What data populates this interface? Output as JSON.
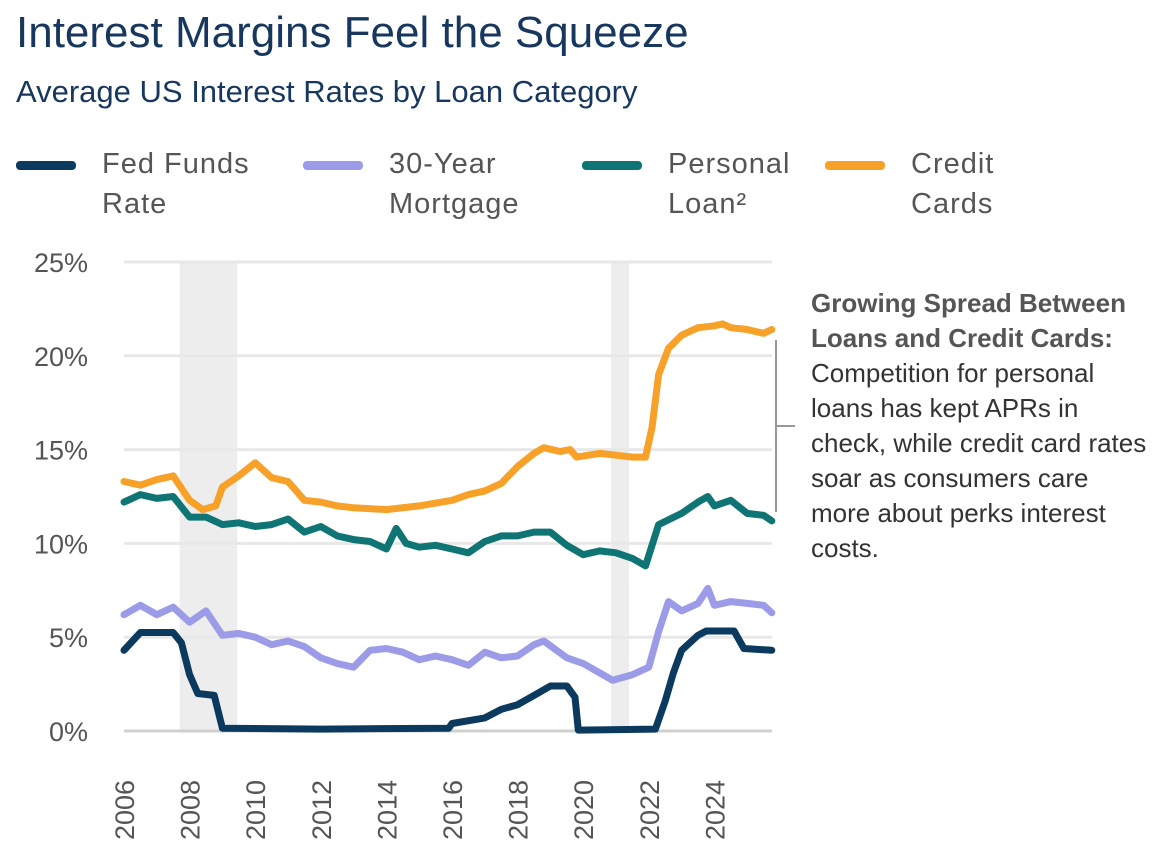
{
  "title": "Interest Margins Feel the Squeeze",
  "subtitle": "Average US Interest Rates by Loan Category",
  "annotation": {
    "heading": "Growing Spread Between Loans and Credit Cards:",
    "body": "Competition for personal loans has kept APRs in check, while credit card rates soar as consumers care more about perks interest costs."
  },
  "chart_data": {
    "type": "line",
    "title": "Interest Margins Feel the Squeeze",
    "subtitle": "Average US Interest Rates by Loan Category",
    "xlabel": "",
    "ylabel": "",
    "xlim": [
      2006,
      2025.75
    ],
    "ylim": [
      0,
      25
    ],
    "x_ticks": [
      "2006",
      "2008",
      "2010",
      "2012",
      "2014",
      "2016",
      "2018",
      "2020",
      "2022",
      "2024"
    ],
    "y_ticks": [
      "0%",
      "5%",
      "10%",
      "15%",
      "20%",
      "25%"
    ],
    "grid": true,
    "legend_position": "top",
    "recession_shading": [
      [
        2007.7,
        2009.45
      ],
      [
        2020.85,
        2021.4
      ]
    ],
    "series": [
      {
        "name": "Fed Funds Rate",
        "color": "#0b3a5e",
        "points": [
          [
            2006,
            4.3
          ],
          [
            2006.5,
            5.25
          ],
          [
            2007.5,
            5.25
          ],
          [
            2007.75,
            4.7
          ],
          [
            2008,
            3.0
          ],
          [
            2008.25,
            2.0
          ],
          [
            2008.75,
            1.9
          ],
          [
            2009,
            0.15
          ],
          [
            2012,
            0.1
          ],
          [
            2015.9,
            0.15
          ],
          [
            2016,
            0.4
          ],
          [
            2017,
            0.7
          ],
          [
            2017.5,
            1.15
          ],
          [
            2018,
            1.4
          ],
          [
            2018.5,
            1.9
          ],
          [
            2019,
            2.4
          ],
          [
            2019.5,
            2.4
          ],
          [
            2019.75,
            1.8
          ],
          [
            2019.85,
            0.05
          ],
          [
            2022.2,
            0.1
          ],
          [
            2022.5,
            1.6
          ],
          [
            2022.75,
            3.1
          ],
          [
            2023,
            4.3
          ],
          [
            2023.5,
            5.1
          ],
          [
            2023.75,
            5.33
          ],
          [
            2024.6,
            5.33
          ],
          [
            2024.9,
            4.4
          ],
          [
            2025.75,
            4.3
          ]
        ]
      },
      {
        "name": "30-Year Mortgage",
        "color": "#9b9be8",
        "points": [
          [
            2006,
            6.2
          ],
          [
            2006.5,
            6.7
          ],
          [
            2007,
            6.2
          ],
          [
            2007.5,
            6.6
          ],
          [
            2008,
            5.8
          ],
          [
            2008.5,
            6.4
          ],
          [
            2009,
            5.1
          ],
          [
            2009.5,
            5.2
          ],
          [
            2010,
            5.0
          ],
          [
            2010.5,
            4.6
          ],
          [
            2011,
            4.8
          ],
          [
            2011.5,
            4.5
          ],
          [
            2012,
            3.9
          ],
          [
            2012.5,
            3.6
          ],
          [
            2013,
            3.4
          ],
          [
            2013.5,
            4.3
          ],
          [
            2014,
            4.4
          ],
          [
            2014.5,
            4.2
          ],
          [
            2015,
            3.8
          ],
          [
            2015.5,
            4.0
          ],
          [
            2016,
            3.8
          ],
          [
            2016.5,
            3.5
          ],
          [
            2017,
            4.2
          ],
          [
            2017.5,
            3.9
          ],
          [
            2018,
            4.0
          ],
          [
            2018.5,
            4.6
          ],
          [
            2018.8,
            4.8
          ],
          [
            2019.5,
            3.9
          ],
          [
            2020,
            3.6
          ],
          [
            2020.5,
            3.1
          ],
          [
            2020.9,
            2.7
          ],
          [
            2021.5,
            3.0
          ],
          [
            2022,
            3.4
          ],
          [
            2022.3,
            5.3
          ],
          [
            2022.6,
            6.9
          ],
          [
            2023,
            6.4
          ],
          [
            2023.5,
            6.8
          ],
          [
            2023.8,
            7.6
          ],
          [
            2024,
            6.7
          ],
          [
            2024.5,
            6.9
          ],
          [
            2025,
            6.8
          ],
          [
            2025.5,
            6.7
          ],
          [
            2025.75,
            6.3
          ]
        ]
      },
      {
        "name": "Personal Loan²",
        "color": "#0e7474",
        "points": [
          [
            2006,
            12.2
          ],
          [
            2006.5,
            12.6
          ],
          [
            2007,
            12.4
          ],
          [
            2007.5,
            12.5
          ],
          [
            2008,
            11.4
          ],
          [
            2008.5,
            11.4
          ],
          [
            2009,
            11.0
          ],
          [
            2009.5,
            11.1
          ],
          [
            2010,
            10.9
          ],
          [
            2010.5,
            11.0
          ],
          [
            2011,
            11.3
          ],
          [
            2011.5,
            10.6
          ],
          [
            2012,
            10.9
          ],
          [
            2012.5,
            10.4
          ],
          [
            2013,
            10.2
          ],
          [
            2013.5,
            10.1
          ],
          [
            2014,
            9.7
          ],
          [
            2014.3,
            10.8
          ],
          [
            2014.6,
            10.0
          ],
          [
            2015,
            9.8
          ],
          [
            2015.5,
            9.9
          ],
          [
            2016,
            9.7
          ],
          [
            2016.5,
            9.5
          ],
          [
            2017,
            10.1
          ],
          [
            2017.5,
            10.4
          ],
          [
            2018,
            10.4
          ],
          [
            2018.5,
            10.6
          ],
          [
            2019,
            10.6
          ],
          [
            2019.5,
            9.9
          ],
          [
            2020,
            9.4
          ],
          [
            2020.5,
            9.6
          ],
          [
            2021,
            9.5
          ],
          [
            2021.5,
            9.2
          ],
          [
            2021.9,
            8.8
          ],
          [
            2022.3,
            11.0
          ],
          [
            2023,
            11.6
          ],
          [
            2023.5,
            12.2
          ],
          [
            2023.8,
            12.5
          ],
          [
            2024,
            12.0
          ],
          [
            2024.5,
            12.3
          ],
          [
            2025,
            11.6
          ],
          [
            2025.5,
            11.5
          ],
          [
            2025.75,
            11.2
          ]
        ]
      },
      {
        "name": "Credit Cards",
        "color": "#f7a128",
        "points": [
          [
            2006,
            13.3
          ],
          [
            2006.5,
            13.1
          ],
          [
            2007,
            13.4
          ],
          [
            2007.5,
            13.6
          ],
          [
            2008,
            12.3
          ],
          [
            2008.4,
            11.8
          ],
          [
            2008.8,
            12.0
          ],
          [
            2009,
            13.0
          ],
          [
            2009.5,
            13.6
          ],
          [
            2010,
            14.3
          ],
          [
            2010.5,
            13.5
          ],
          [
            2011,
            13.3
          ],
          [
            2011.5,
            12.3
          ],
          [
            2012,
            12.2
          ],
          [
            2012.5,
            12.0
          ],
          [
            2013,
            11.9
          ],
          [
            2014,
            11.8
          ],
          [
            2015,
            12.0
          ],
          [
            2016,
            12.3
          ],
          [
            2016.5,
            12.6
          ],
          [
            2017,
            12.8
          ],
          [
            2017.5,
            13.2
          ],
          [
            2018,
            14.1
          ],
          [
            2018.5,
            14.8
          ],
          [
            2018.8,
            15.1
          ],
          [
            2019.3,
            14.9
          ],
          [
            2019.6,
            15.0
          ],
          [
            2019.8,
            14.6
          ],
          [
            2020.5,
            14.8
          ],
          [
            2021,
            14.7
          ],
          [
            2021.5,
            14.6
          ],
          [
            2021.9,
            14.6
          ],
          [
            2022.1,
            16.2
          ],
          [
            2022.3,
            19.0
          ],
          [
            2022.6,
            20.4
          ],
          [
            2023,
            21.1
          ],
          [
            2023.5,
            21.5
          ],
          [
            2024,
            21.6
          ],
          [
            2024.25,
            21.7
          ],
          [
            2024.5,
            21.5
          ],
          [
            2025,
            21.4
          ],
          [
            2025.5,
            21.2
          ],
          [
            2025.75,
            21.4
          ]
        ]
      }
    ]
  }
}
